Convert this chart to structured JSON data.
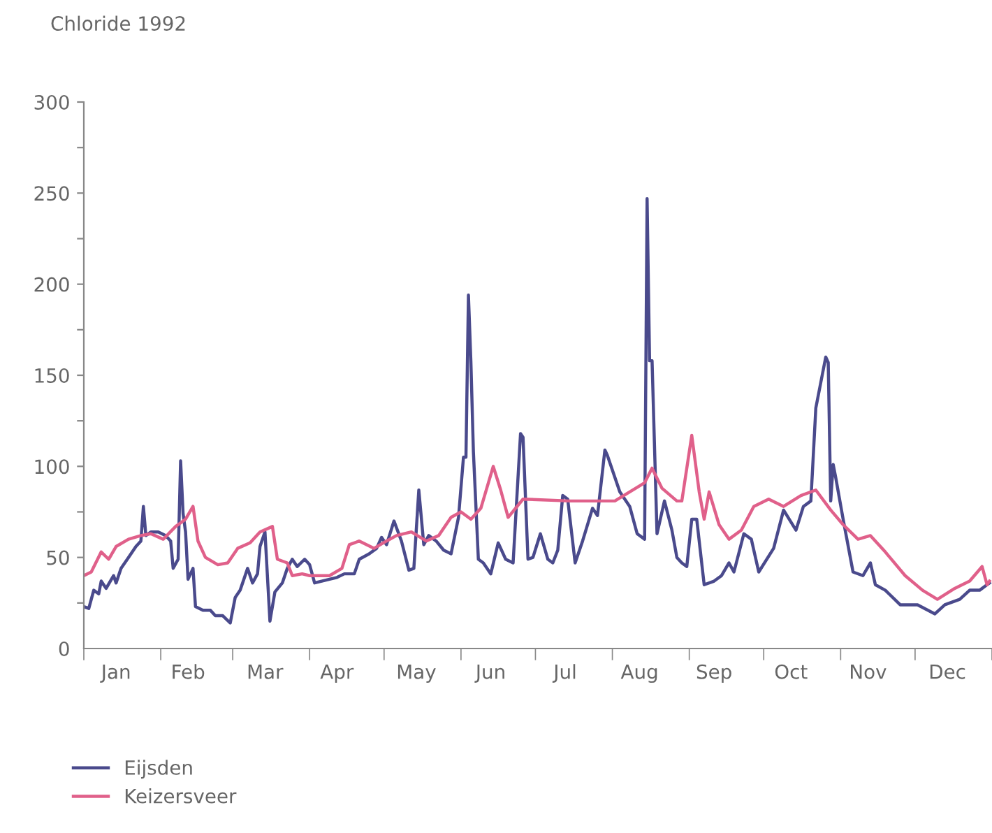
{
  "chart_data": {
    "type": "line",
    "title": "Chloride 1992",
    "xlim": [
      "1992-01-01",
      "1993-01-01"
    ],
    "xticks": [
      {
        "value": "1992-01-01",
        "label": null
      },
      {
        "value": "1992-01-14",
        "label": "Jan"
      },
      {
        "value": "1992-02-01",
        "label": null
      },
      {
        "value": "1992-02-12",
        "label": "Feb"
      },
      {
        "value": "1992-03-01",
        "label": null
      },
      {
        "value": "1992-03-14",
        "label": "Mar"
      },
      {
        "value": "1992-04-01",
        "label": null
      },
      {
        "value": "1992-04-12",
        "label": "Apr"
      },
      {
        "value": "1992-05-01",
        "label": null
      },
      {
        "value": "1992-05-14",
        "label": "May"
      },
      {
        "value": "1992-06-01",
        "label": null
      },
      {
        "value": "1992-06-13",
        "label": "Jun"
      },
      {
        "value": "1992-07-01",
        "label": null
      },
      {
        "value": "1992-07-13",
        "label": "Jul"
      },
      {
        "value": "1992-08-01",
        "label": null
      },
      {
        "value": "1992-08-12",
        "label": "Aug"
      },
      {
        "value": "1992-09-01",
        "label": null
      },
      {
        "value": "1992-09-11",
        "label": "Sep"
      },
      {
        "value": "1992-10-01",
        "label": null
      },
      {
        "value": "1992-10-12",
        "label": "Oct"
      },
      {
        "value": "1992-11-01",
        "label": null
      },
      {
        "value": "1992-11-12",
        "label": "Nov"
      },
      {
        "value": "1992-12-01",
        "label": null
      },
      {
        "value": "1992-12-14",
        "label": "Dec"
      },
      {
        "value": "1993-01-01",
        "label": null
      }
    ],
    "ylim": [
      0,
      300
    ],
    "yticks": [
      0,
      {
        "value": 25,
        "label": null
      },
      50,
      {
        "value": 75,
        "label": null
      },
      100,
      {
        "value": 125,
        "label": null
      },
      150,
      {
        "value": 175,
        "label": null
      },
      200,
      {
        "value": 225,
        "label": null
      },
      250,
      {
        "value": 275,
        "label": null
      },
      300
    ],
    "grid": false,
    "legend": "bottom left",
    "line_style": "solid",
    "marker": "none",
    "series": [
      {
        "name": "Eijsden",
        "color": "#4a4a8c",
        "x": [
          "1992-01-01",
          "1992-01-03",
          "1992-01-05",
          "1992-01-07",
          "1992-01-08",
          "1992-01-10",
          "1992-01-13",
          "1992-01-14",
          "1992-01-16",
          "1992-01-19",
          "1992-01-22",
          "1992-01-24",
          "1992-01-25",
          "1992-01-26",
          "1992-01-28",
          "1992-01-31",
          "1992-02-03",
          "1992-02-05",
          "1992-02-06",
          "1992-02-08",
          "1992-02-09",
          "1992-02-10",
          "1992-02-11",
          "1992-02-12",
          "1992-02-14",
          "1992-02-15",
          "1992-02-18",
          "1992-02-21",
          "1992-02-23",
          "1992-02-26",
          "1992-02-29",
          "1992-03-02",
          "1992-03-04",
          "1992-03-07",
          "1992-03-09",
          "1992-03-11",
          "1992-03-12",
          "1992-03-14",
          "1992-03-16",
          "1992-03-18",
          "1992-03-21",
          "1992-03-23",
          "1992-03-25",
          "1992-03-27",
          "1992-03-30",
          "1992-04-01",
          "1992-04-03",
          "1992-04-09",
          "1992-04-12",
          "1992-04-15",
          "1992-04-19",
          "1992-04-21",
          "1992-04-25",
          "1992-04-28",
          "1992-04-30",
          "1992-05-02",
          "1992-05-05",
          "1992-05-08",
          "1992-05-11",
          "1992-05-13",
          "1992-05-15",
          "1992-05-17",
          "1992-05-19",
          "1992-05-22",
          "1992-05-25",
          "1992-05-28",
          "1992-05-31",
          "1992-06-02",
          "1992-06-03",
          "1992-06-04",
          "1992-06-05",
          "1992-06-06",
          "1992-06-08",
          "1992-06-10",
          "1992-06-13",
          "1992-06-16",
          "1992-06-19",
          "1992-06-22",
          "1992-06-25",
          "1992-06-26",
          "1992-06-28",
          "1992-06-30",
          "1992-07-03",
          "1992-07-06",
          "1992-07-08",
          "1992-07-10",
          "1992-07-12",
          "1992-07-14",
          "1992-07-17",
          "1992-07-20",
          "1992-07-24",
          "1992-07-26",
          "1992-07-29",
          "1992-07-30",
          "1992-08-04",
          "1992-08-08",
          "1992-08-11",
          "1992-08-14",
          "1992-08-15",
          "1992-08-16",
          "1992-08-17",
          "1992-08-19",
          "1992-08-22",
          "1992-08-25",
          "1992-08-27",
          "1992-08-29",
          "1992-08-31",
          "1992-09-02",
          "1992-09-04",
          "1992-09-07",
          "1992-09-11",
          "1992-09-14",
          "1992-09-17",
          "1992-09-19",
          "1992-09-23",
          "1992-09-26",
          "1992-09-29",
          "1992-10-05",
          "1992-10-09",
          "1992-10-14",
          "1992-10-17",
          "1992-10-20",
          "1992-10-22",
          "1992-10-26",
          "1992-10-27",
          "1992-10-28",
          "1992-10-29",
          "1992-10-30",
          "1992-11-02",
          "1992-11-06",
          "1992-11-10",
          "1992-11-13",
          "1992-11-15",
          "1992-11-19",
          "1992-11-25",
          "1992-12-02",
          "1992-12-09",
          "1992-12-13",
          "1992-12-19",
          "1992-12-23",
          "1992-12-27",
          "1992-12-30",
          "1992-12-31"
        ],
        "values": [
          23,
          22,
          32,
          30,
          37,
          33,
          40,
          36,
          44,
          50,
          56,
          59,
          78,
          62,
          64,
          64,
          62,
          59,
          44,
          49,
          103,
          74,
          64,
          38,
          44,
          23,
          21,
          21,
          18,
          18,
          14,
          28,
          32,
          44,
          36,
          41,
          56,
          64,
          15,
          31,
          36,
          44,
          49,
          45,
          49,
          46,
          36,
          38,
          39,
          41,
          41,
          49,
          52,
          55,
          61,
          57,
          70,
          59,
          43,
          44,
          87,
          57,
          62,
          59,
          54,
          52,
          72,
          105,
          105,
          194,
          157,
          108,
          49,
          47,
          41,
          58,
          49,
          47,
          118,
          116,
          49,
          50,
          63,
          49,
          47,
          54,
          84,
          82,
          47,
          59,
          77,
          73,
          109,
          106,
          86,
          78,
          63,
          60,
          247,
          158,
          158,
          63,
          81,
          65,
          50,
          47,
          45,
          71,
          71,
          35,
          37,
          40,
          47,
          42,
          63,
          60,
          42,
          55,
          76,
          65,
          78,
          81,
          132,
          160,
          157,
          81,
          101,
          94,
          71,
          42,
          40,
          47,
          35,
          32,
          24,
          24,
          19,
          24,
          27,
          32,
          32,
          35,
          36
        ]
      },
      {
        "name": "Keizersveer",
        "color": "#e0608a",
        "x": [
          "1992-01-01",
          "1992-01-04",
          "1992-01-08",
          "1992-01-11",
          "1992-01-14",
          "1992-01-19",
          "1992-01-24",
          "1992-01-28",
          "1992-02-02",
          "1992-02-07",
          "1992-02-11",
          "1992-02-14",
          "1992-02-16",
          "1992-02-19",
          "1992-02-24",
          "1992-02-28",
          "1992-03-03",
          "1992-03-08",
          "1992-03-12",
          "1992-03-17",
          "1992-03-19",
          "1992-03-23",
          "1992-03-25",
          "1992-03-29",
          "1992-04-01",
          "1992-04-09",
          "1992-04-14",
          "1992-04-17",
          "1992-04-21",
          "1992-04-27",
          "1992-05-02",
          "1992-05-06",
          "1992-05-12",
          "1992-05-18",
          "1992-05-23",
          "1992-05-28",
          "1992-06-01",
          "1992-06-05",
          "1992-06-09",
          "1992-06-14",
          "1992-06-17",
          "1992-06-20",
          "1992-06-26",
          "1992-07-15",
          "1992-08-02",
          "1992-08-08",
          "1992-08-14",
          "1992-08-17",
          "1992-08-21",
          "1992-08-27",
          "1992-08-29",
          "1992-09-02",
          "1992-09-05",
          "1992-09-07",
          "1992-09-09",
          "1992-09-13",
          "1992-09-17",
          "1992-09-22",
          "1992-09-27",
          "1992-10-03",
          "1992-10-09",
          "1992-10-16",
          "1992-10-22",
          "1992-10-28",
          "1992-11-02",
          "1992-11-08",
          "1992-11-13",
          "1992-11-19",
          "1992-11-27",
          "1992-12-04",
          "1992-12-10",
          "1992-12-17",
          "1992-12-23",
          "1992-12-28",
          "1992-12-30",
          "1992-12-31"
        ],
        "values": [
          40,
          42,
          53,
          49,
          56,
          60,
          62,
          63,
          60,
          67,
          71,
          78,
          59,
          50,
          46,
          47,
          55,
          58,
          64,
          67,
          49,
          47,
          40,
          41,
          40,
          40,
          44,
          57,
          59,
          55,
          59,
          62,
          64,
          59,
          62,
          72,
          75,
          71,
          77,
          100,
          87,
          72,
          82,
          81,
          81,
          86,
          91,
          99,
          88,
          81,
          81,
          117,
          86,
          71,
          86,
          68,
          60,
          65,
          78,
          82,
          78,
          84,
          87,
          76,
          68,
          60,
          62,
          53,
          40,
          32,
          27,
          33,
          37,
          45,
          35,
          37
        ]
      }
    ]
  }
}
